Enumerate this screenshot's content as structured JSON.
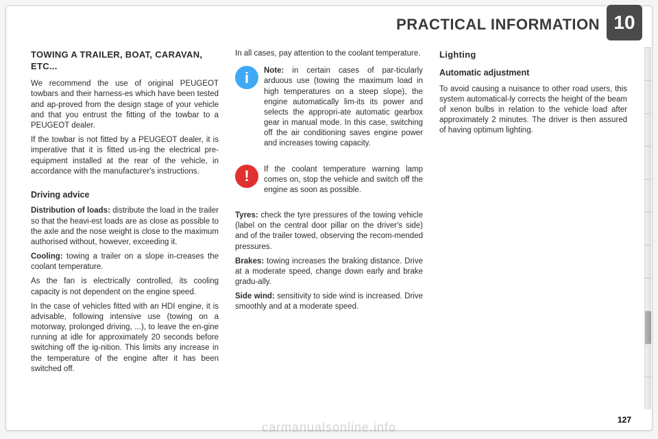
{
  "header": {
    "chapter_number": "10",
    "title": "PRACTICAL INFORMATION"
  },
  "col1": {
    "h_towing": "TOWING A TRAILER, BOAT, CARAVAN, ETC...",
    "p1": "We recommend the use of original PEUGEOT towbars and their harness-es which have been tested and ap-proved from the design stage of your vehicle and that you entrust the fitting of the towbar to a PEUGEOT dealer.",
    "p2": "If the towbar is not fitted by a PEUGEOT dealer, it is imperative that it is fitted us-ing the electrical pre-equipment installed at the rear of the vehicle, in accordance with the manufacturer's instructions.",
    "h_driving": "Driving advice",
    "p3_label": "Distribution of loads:",
    "p3": " distribute the load in the trailer so that the heavi-est loads are as close as possible to the axle and the nose weight is close to the maximum authorised without, however, exceeding it.",
    "p4_label": "Cooling:",
    "p4": " towing a trailer on a slope in-creases the coolant temperature.",
    "p5": "As the fan is electrically controlled, its cooling capacity is not dependent on the engine speed.",
    "p6": "In the case of vehicles fitted with an HDI engine, it is advisable, following intensive use (towing on a motorway, prolonged driving, ...), to leave the en-gine running at idle for approximately 20 seconds before switching off the ig-nition. This limits any increase in the temperature of the engine after it has been switched off."
  },
  "col2": {
    "p0": "In all cases, pay attention to the coolant temperature.",
    "note_label": "Note:",
    "note": " in certain cases of par-ticularly arduous use (towing the maximum load in high temperatures on a steep slope), the engine automatically lim-its its power and selects the appropri-ate automatic gearbox gear in manual mode. In this case, switching off the air conditioning saves engine power and increases towing capacity.",
    "warn": "If the coolant temperature warning lamp comes on, stop the vehicle and switch off the engine as soon as possible.",
    "tyres_label": "Tyres:",
    "tyres": " check the tyre pressures of the towing vehicle (label on the central door pillar on the driver's side) and of the trailer towed, observing the recom-mended pressures.",
    "brakes_label": "Brakes:",
    "brakes": " towing increases the braking distance. Drive at a moderate speed, change down early and brake gradu-ally.",
    "wind_label": "Side wind:",
    "wind": " sensitivity to side wind is increased. Drive smoothly and at a moderate speed."
  },
  "col3": {
    "h_lighting": "Lighting",
    "h_auto": "Automatic adjustment",
    "p1": "To avoid causing a nuisance to other road users, this system automatical-ly corrects the height of the beam of xenon bulbs in relation to the vehicle load after approximately 2 minutes. The driver is then assured of having optimum lighting."
  },
  "footer": {
    "page": "127",
    "watermark": "carmanualsonline.info"
  },
  "tabs": {
    "active_index": 8,
    "count": 11
  }
}
